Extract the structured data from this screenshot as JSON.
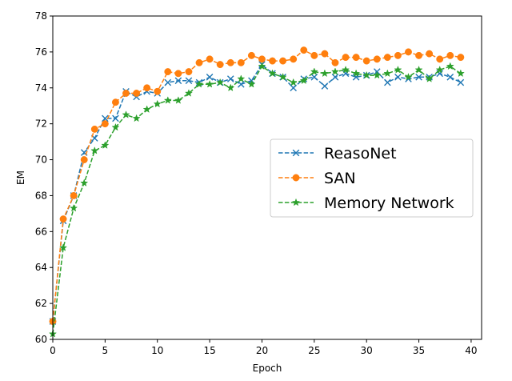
{
  "chart_data": {
    "type": "line",
    "title": "",
    "xlabel": "Epoch",
    "ylabel": "EM",
    "xlim": [
      0,
      41
    ],
    "ylim": [
      60,
      78
    ],
    "x_ticks": [
      0,
      5,
      10,
      15,
      20,
      25,
      30,
      35,
      40
    ],
    "y_ticks": [
      60,
      62,
      64,
      66,
      68,
      70,
      72,
      74,
      76,
      78
    ],
    "grid": false,
    "legend_position": "center-right",
    "x": [
      0,
      1,
      2,
      3,
      4,
      5,
      6,
      7,
      8,
      9,
      10,
      11,
      12,
      13,
      14,
      15,
      16,
      17,
      18,
      19,
      20,
      21,
      22,
      23,
      24,
      25,
      26,
      27,
      28,
      29,
      30,
      31,
      32,
      33,
      34,
      35,
      36,
      37,
      38,
      39
    ],
    "series": [
      {
        "name": "ReasoNet",
        "color": "#1f77b4",
        "marker": "x",
        "values": [
          61.0,
          66.6,
          68.0,
          70.4,
          71.2,
          72.3,
          72.3,
          73.8,
          73.5,
          73.8,
          73.7,
          74.3,
          74.4,
          74.4,
          74.3,
          74.6,
          74.3,
          74.5,
          74.2,
          74.4,
          75.3,
          74.8,
          74.6,
          74.0,
          74.5,
          74.6,
          74.1,
          74.6,
          74.8,
          74.6,
          74.7,
          74.9,
          74.3,
          74.6,
          74.5,
          74.6,
          74.6,
          74.8,
          74.6,
          74.3
        ]
      },
      {
        "name": "SAN",
        "color": "#ff7f0e",
        "marker": "circle",
        "values": [
          61.0,
          66.7,
          68.0,
          70.0,
          71.7,
          72.0,
          73.2,
          73.7,
          73.7,
          74.0,
          73.8,
          74.9,
          74.8,
          74.9,
          75.4,
          75.6,
          75.3,
          75.4,
          75.4,
          75.8,
          75.6,
          75.5,
          75.5,
          75.6,
          76.1,
          75.8,
          75.9,
          75.4,
          75.7,
          75.7,
          75.5,
          75.6,
          75.7,
          75.8,
          76.0,
          75.8,
          75.9,
          75.6,
          75.8,
          75.7
        ]
      },
      {
        "name": "Memory Network",
        "color": "#2ca02c",
        "marker": "star",
        "values": [
          60.3,
          65.1,
          67.3,
          68.7,
          70.5,
          70.8,
          71.8,
          72.5,
          72.3,
          72.8,
          73.1,
          73.3,
          73.3,
          73.7,
          74.2,
          74.2,
          74.3,
          74.0,
          74.5,
          74.2,
          75.2,
          74.8,
          74.6,
          74.3,
          74.4,
          74.9,
          74.8,
          74.9,
          75.0,
          74.8,
          74.7,
          74.7,
          74.8,
          75.0,
          74.6,
          75.0,
          74.5,
          75.0,
          75.2,
          74.8
        ]
      }
    ]
  }
}
